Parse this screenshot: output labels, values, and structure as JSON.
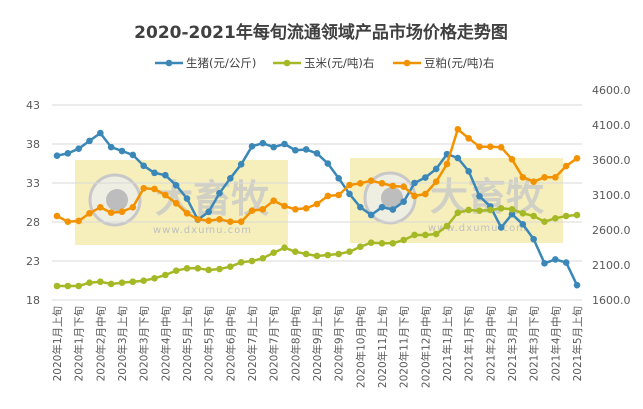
{
  "chart_data": {
    "type": "line",
    "title": "2020-2021年每旬流通领域产品市场价格走势图",
    "x_tick_labels": [
      "2020年1月上旬",
      "2020年1月下旬",
      "2020年2月中旬",
      "2020年3月上旬",
      "2020年3月下旬",
      "2020年4月中旬",
      "2020年5月上旬",
      "2020年5月下旬",
      "2020年6月中旬",
      "2020年7月上旬",
      "2020年7月下旬",
      "2020年8月中旬",
      "2020年9月上旬",
      "2020年9月下旬",
      "2020年10月中旬",
      "2020年11月上旬",
      "2020年11月下旬",
      "2020年12月中旬",
      "2021年1月上旬",
      "2021年1月下旬",
      "2021年2月中旬",
      "2021年3月上旬",
      "2021年3月下旬",
      "2021年4月中旬",
      "2021年5月上旬"
    ],
    "y_left": {
      "range": [
        18,
        43
      ],
      "ticks": [
        "18",
        "23",
        "28",
        "33",
        "38",
        "43"
      ]
    },
    "y_right": {
      "range": [
        1600,
        4600
      ],
      "ticks": [
        "1600.0",
        "2100.0",
        "2600.0",
        "3100.0",
        "3600.0",
        "4100.0",
        "4600.0"
      ]
    },
    "grid": true,
    "legend_position": "top",
    "series": [
      {
        "name": "生猪(元/公斤)",
        "axis": "left",
        "color": "#3a87b8",
        "values": [
          36.5,
          36.8,
          37.4,
          38.4,
          39.4,
          37.6,
          37.1,
          36.6,
          35.2,
          34.3,
          34.0,
          32.7,
          31.0,
          28.3,
          29.3,
          31.7,
          33.6,
          35.4,
          37.7,
          38.1,
          37.6,
          38.0,
          37.2,
          37.3,
          36.8,
          35.5,
          33.6,
          31.6,
          29.9,
          28.9,
          29.9,
          29.6,
          30.6,
          33.0,
          33.7,
          34.8,
          36.7,
          36.2,
          34.5,
          31.3,
          30.0,
          27.3,
          29.0,
          27.7,
          25.8,
          22.7,
          23.2,
          22.8,
          19.9
        ]
      },
      {
        "name": "玉米(元/吨)右",
        "axis": "right",
        "color": "#a5b825",
        "values": [
          1800,
          1800,
          1800,
          1847,
          1861,
          1829,
          1847,
          1861,
          1876,
          1910,
          1957,
          2019,
          2053,
          2053,
          2029,
          2043,
          2076,
          2139,
          2157,
          2196,
          2276,
          2347,
          2290,
          2257,
          2229,
          2243,
          2257,
          2290,
          2361,
          2419,
          2410,
          2410,
          2457,
          2529,
          2529,
          2543,
          2657,
          2847,
          2886,
          2876,
          2886,
          2910,
          2896,
          2839,
          2800,
          2719,
          2767,
          2800,
          2814
        ]
      },
      {
        "name": "豆粕(元/吨)右",
        "axis": "right",
        "color": "#f39200",
        "values": [
          2800,
          2719,
          2729,
          2839,
          2924,
          2847,
          2861,
          2924,
          3196,
          3186,
          3100,
          2981,
          2839,
          2753,
          2733,
          2753,
          2719,
          2719,
          2876,
          2896,
          3019,
          2943,
          2896,
          2910,
          2971,
          3086,
          3100,
          3243,
          3267,
          3304,
          3267,
          3229,
          3219,
          3086,
          3114,
          3290,
          3543,
          4039,
          3910,
          3790,
          3790,
          3781,
          3610,
          3353,
          3290,
          3353,
          3353,
          3514,
          3624
        ]
      }
    ]
  },
  "watermark": {
    "logo_text": "大畜牧",
    "url_text": "www.dxumu.com"
  }
}
